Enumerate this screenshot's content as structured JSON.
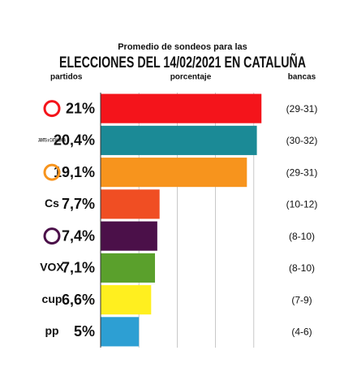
{
  "chart_data": {
    "type": "bar",
    "orientation": "horizontal",
    "subtitle": "Promedio de sondeos para las",
    "title": "ELECCIONES DEL 14/02/2021 EN CATALUÑA",
    "category_header": "partidos",
    "value_header": "porcentaje",
    "seats_header": "bancas",
    "categories": [
      null,
      "JUNTS x CATALUNYA",
      null,
      "Cs",
      null,
      "VOX",
      "cup",
      "pp"
    ],
    "values": [
      21,
      20.4,
      19.1,
      7.7,
      7.4,
      7.1,
      6.6,
      5
    ],
    "value_labels": [
      "21%",
      "20,4%",
      "19,1%",
      "7,7%",
      "7,4%",
      "7,1%",
      "6,6%",
      "5%"
    ],
    "seats": [
      "(29-31)",
      "(30-32)",
      "(29-31)",
      "(10-12)",
      "(8-10)",
      "(8-10)",
      "(7-9)",
      "(4-6)"
    ],
    "colors": [
      "#f4141b",
      "#1b8a96",
      "#f7941d",
      "#f04e23",
      "#4b1049",
      "#5aa02c",
      "#ffef1f",
      "#2d9fd3"
    ],
    "xlim": [
      0,
      25
    ],
    "xticks": [
      0,
      5,
      10,
      15,
      20
    ],
    "grid": true
  }
}
